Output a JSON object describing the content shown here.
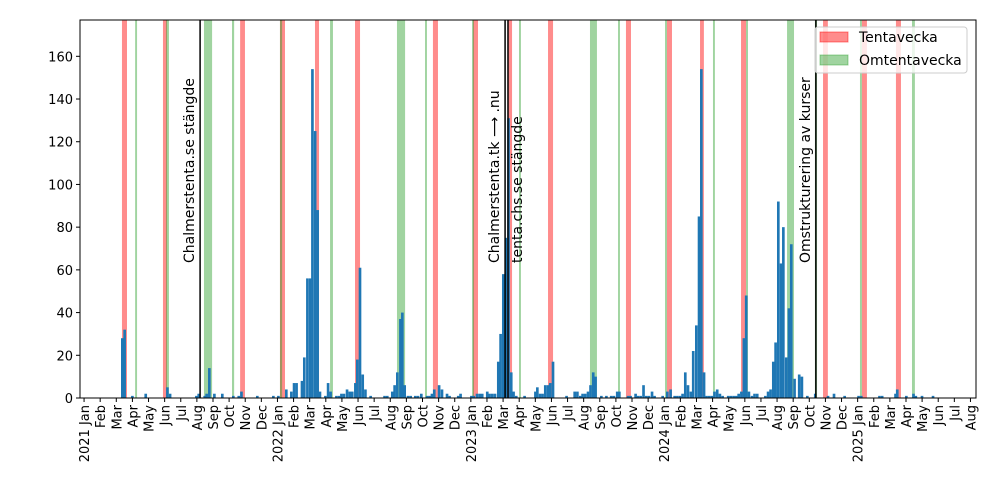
{
  "chart_data": {
    "type": "bar",
    "title": "",
    "xlabel": "",
    "ylabel": "",
    "xlim": [
      2020.979,
      2025.612
    ],
    "ylim": [
      0,
      177
    ],
    "bin_width": 0.0137,
    "bar_color": "#1f77b4",
    "yticks": [
      0,
      20,
      40,
      60,
      80,
      100,
      120,
      140,
      160
    ],
    "xtick_start_year": 2021,
    "xtick_labels": [
      "2021 Jan",
      "Feb",
      "Mar",
      "Apr",
      "May",
      "Jun",
      "Jul",
      "Aug",
      "Sep",
      "Oct",
      "Nov",
      "Dec",
      "2022 Jan",
      "Feb",
      "Mar",
      "Apr",
      "May",
      "Jun",
      "Jul",
      "Aug",
      "Sep",
      "Oct",
      "Nov",
      "Dec",
      "2023 Jan",
      "Feb",
      "Mar",
      "Apr",
      "May",
      "Jun",
      "Jul",
      "Aug",
      "Sep",
      "Oct",
      "Nov",
      "Dec",
      "2024 Jan",
      "Feb",
      "Mar",
      "Apr",
      "May",
      "Jun",
      "Jul",
      "Aug",
      "Sep",
      "Oct",
      "Nov",
      "Dec",
      "2025 Jan",
      "Feb",
      "Mar",
      "Apr",
      "May",
      "Jun",
      "Jul",
      "Aug"
    ],
    "bins": [
      [
        2021.191,
        28
      ],
      [
        2021.203,
        32
      ],
      [
        2021.243,
        1
      ],
      [
        2021.312,
        2
      ],
      [
        2021.424,
        5
      ],
      [
        2021.438,
        2
      ],
      [
        2021.574,
        1
      ],
      [
        2021.586,
        2
      ],
      [
        2021.617,
        1
      ],
      [
        2021.627,
        2
      ],
      [
        2021.641,
        14
      ],
      [
        2021.667,
        2
      ],
      [
        2021.708,
        2
      ],
      [
        2021.765,
        1
      ],
      [
        2021.793,
        1
      ],
      [
        2021.807,
        3
      ],
      [
        2021.889,
        1
      ],
      [
        2021.972,
        1
      ],
      [
        2021.998,
        1
      ],
      [
        2022.039,
        4
      ],
      [
        2022.065,
        3
      ],
      [
        2022.079,
        7
      ],
      [
        2022.092,
        7
      ],
      [
        2022.12,
        8
      ],
      [
        2022.132,
        19
      ],
      [
        2022.148,
        56
      ],
      [
        2022.162,
        56
      ],
      [
        2022.174,
        154
      ],
      [
        2022.188,
        125
      ],
      [
        2022.201,
        88
      ],
      [
        2022.213,
        3
      ],
      [
        2022.241,
        1
      ],
      [
        2022.255,
        7
      ],
      [
        2022.268,
        3
      ],
      [
        2022.298,
        1
      ],
      [
        2022.312,
        1
      ],
      [
        2022.324,
        2
      ],
      [
        2022.337,
        2
      ],
      [
        2022.353,
        4
      ],
      [
        2022.367,
        3
      ],
      [
        2022.38,
        3
      ],
      [
        2022.396,
        7
      ],
      [
        2022.406,
        18
      ],
      [
        2022.42,
        61
      ],
      [
        2022.434,
        11
      ],
      [
        2022.448,
        4
      ],
      [
        2022.475,
        1
      ],
      [
        2022.547,
        1
      ],
      [
        2022.561,
        1
      ],
      [
        2022.587,
        3
      ],
      [
        2022.599,
        6
      ],
      [
        2022.613,
        12
      ],
      [
        2022.629,
        37
      ],
      [
        2022.639,
        40
      ],
      [
        2022.651,
        6
      ],
      [
        2022.668,
        1
      ],
      [
        2022.682,
        1
      ],
      [
        2022.706,
        1
      ],
      [
        2022.72,
        1
      ],
      [
        2022.737,
        2
      ],
      [
        2022.767,
        1
      ],
      [
        2022.78,
        1
      ],
      [
        2022.792,
        2
      ],
      [
        2022.804,
        4
      ],
      [
        2022.829,
        6
      ],
      [
        2022.844,
        4
      ],
      [
        2022.87,
        2
      ],
      [
        2022.883,
        1
      ],
      [
        2022.928,
        1
      ],
      [
        2022.94,
        2
      ],
      [
        2022.996,
        1
      ],
      [
        2023.008,
        1
      ],
      [
        2023.025,
        2
      ],
      [
        2023.039,
        2
      ],
      [
        2023.052,
        2
      ],
      [
        2023.078,
        3
      ],
      [
        2023.09,
        2
      ],
      [
        2023.104,
        2
      ],
      [
        2023.118,
        2
      ],
      [
        2023.135,
        17
      ],
      [
        2023.147,
        30
      ],
      [
        2023.161,
        58
      ],
      [
        2023.174,
        75
      ],
      [
        2023.188,
        131
      ],
      [
        2023.202,
        12
      ],
      [
        2023.214,
        3
      ],
      [
        2023.228,
        1
      ],
      [
        2023.271,
        1
      ],
      [
        2023.327,
        3
      ],
      [
        2023.337,
        5
      ],
      [
        2023.351,
        2
      ],
      [
        2023.364,
        2
      ],
      [
        2023.378,
        6
      ],
      [
        2023.392,
        6
      ],
      [
        2023.404,
        7
      ],
      [
        2023.418,
        17
      ],
      [
        2023.488,
        1
      ],
      [
        2023.53,
        3
      ],
      [
        2023.544,
        3
      ],
      [
        2023.559,
        1
      ],
      [
        2023.571,
        2
      ],
      [
        2023.585,
        2
      ],
      [
        2023.599,
        3
      ],
      [
        2023.612,
        6
      ],
      [
        2023.626,
        12
      ],
      [
        2023.638,
        10
      ],
      [
        2023.668,
        1
      ],
      [
        2023.694,
        1
      ],
      [
        2023.719,
        1
      ],
      [
        2023.733,
        1
      ],
      [
        2023.75,
        3
      ],
      [
        2023.761,
        3
      ],
      [
        2023.806,
        1
      ],
      [
        2023.819,
        1
      ],
      [
        2023.845,
        2
      ],
      [
        2023.857,
        1
      ],
      [
        2023.871,
        1
      ],
      [
        2023.886,
        6
      ],
      [
        2023.9,
        1
      ],
      [
        2023.914,
        1
      ],
      [
        2023.93,
        3
      ],
      [
        2023.943,
        1
      ],
      [
        2023.985,
        1
      ],
      [
        2024.009,
        3
      ],
      [
        2024.026,
        4
      ],
      [
        2024.047,
        1
      ],
      [
        2024.061,
        1
      ],
      [
        2024.075,
        1
      ],
      [
        2024.088,
        2
      ],
      [
        2024.102,
        12
      ],
      [
        2024.116,
        6
      ],
      [
        2024.131,
        3
      ],
      [
        2024.143,
        22
      ],
      [
        2024.159,
        34
      ],
      [
        2024.173,
        85
      ],
      [
        2024.185,
        154
      ],
      [
        2024.199,
        12
      ],
      [
        2024.212,
        1
      ],
      [
        2024.226,
        1
      ],
      [
        2024.24,
        1
      ],
      [
        2024.253,
        3
      ],
      [
        2024.267,
        4
      ],
      [
        2024.281,
        2
      ],
      [
        2024.295,
        1
      ],
      [
        2024.324,
        1
      ],
      [
        2024.338,
        1
      ],
      [
        2024.352,
        1
      ],
      [
        2024.366,
        1
      ],
      [
        2024.378,
        2
      ],
      [
        2024.392,
        3
      ],
      [
        2024.405,
        28
      ],
      [
        2024.417,
        48
      ],
      [
        2024.431,
        3
      ],
      [
        2024.447,
        1
      ],
      [
        2024.46,
        2
      ],
      [
        2024.474,
        2
      ],
      [
        2024.516,
        1
      ],
      [
        2024.53,
        3
      ],
      [
        2024.543,
        4
      ],
      [
        2024.557,
        17
      ],
      [
        2024.569,
        26
      ],
      [
        2024.583,
        92
      ],
      [
        2024.597,
        63
      ],
      [
        2024.609,
        80
      ],
      [
        2024.624,
        19
      ],
      [
        2024.638,
        42
      ],
      [
        2024.65,
        72
      ],
      [
        2024.667,
        9
      ],
      [
        2024.691,
        11
      ],
      [
        2024.705,
        10
      ],
      [
        2024.733,
        1
      ],
      [
        2024.774,
        2
      ],
      [
        2024.84,
        1
      ],
      [
        2024.871,
        2
      ],
      [
        2024.926,
        1
      ],
      [
        2024.998,
        1
      ],
      [
        2025.012,
        1
      ],
      [
        2025.106,
        1
      ],
      [
        2025.12,
        1
      ],
      [
        2025.189,
        2
      ],
      [
        2025.198,
        4
      ],
      [
        2025.245,
        1
      ],
      [
        2025.282,
        2
      ],
      [
        2025.294,
        1
      ],
      [
        2025.326,
        1
      ],
      [
        2025.383,
        1
      ]
    ],
    "bands": {
      "tentavecka": {
        "label": "Tentavecka",
        "color": "#ff0000",
        "ranges": [
          [
            2021.196,
            2021.222
          ],
          [
            2021.408,
            2021.429
          ],
          [
            2021.807,
            2021.832
          ],
          [
            2022.013,
            2022.039
          ],
          [
            2022.194,
            2022.215
          ],
          [
            2022.401,
            2022.427
          ],
          [
            2022.804,
            2022.83
          ],
          [
            2023.011,
            2023.037
          ],
          [
            2023.192,
            2023.213
          ],
          [
            2023.399,
            2023.425
          ],
          [
            2023.802,
            2023.828
          ],
          [
            2024.014,
            2024.04
          ],
          [
            2024.185,
            2024.205
          ],
          [
            2024.397,
            2024.423
          ],
          [
            2024.821,
            2024.846
          ],
          [
            2025.022,
            2025.048
          ],
          [
            2025.198,
            2025.224
          ]
        ]
      },
      "omtentavecka": {
        "label": "Omtentavecka",
        "color": "#2ca02c",
        "ranges": [
          [
            2021.264,
            2021.274
          ],
          [
            2021.424,
            2021.439
          ],
          [
            2021.62,
            2021.662
          ],
          [
            2021.765,
            2021.776
          ],
          [
            2022.013,
            2022.024
          ],
          [
            2022.272,
            2022.287
          ],
          [
            2022.618,
            2022.66
          ],
          [
            2022.763,
            2022.773
          ],
          [
            2023.006,
            2023.016
          ],
          [
            2023.249,
            2023.259
          ],
          [
            2023.616,
            2023.652
          ],
          [
            2023.761,
            2023.771
          ],
          [
            2024.004,
            2024.014
          ],
          [
            2024.252,
            2024.262
          ],
          [
            2024.423,
            2024.433
          ],
          [
            2024.635,
            2024.671
          ],
          [
            2024.779,
            2024.79
          ],
          [
            2025.012,
            2025.022
          ],
          [
            2025.281,
            2025.296
          ]
        ]
      }
    },
    "annotations": [
      {
        "x": 2021.6,
        "text": "Chalmerstenta.se stängde",
        "side": "left"
      },
      {
        "x": 2023.177,
        "text": "Chalmerstenta.tk ⟶ .nu",
        "side": "left"
      },
      {
        "x": 2023.192,
        "text": "tenta.chs.se stängde",
        "side": "right"
      },
      {
        "x": 2024.784,
        "text": "Omstrukturering av kurser",
        "side": "left"
      }
    ],
    "legend": {
      "position": "top-right",
      "entries": [
        "Tentavecka",
        "Omtentavecka"
      ]
    }
  }
}
